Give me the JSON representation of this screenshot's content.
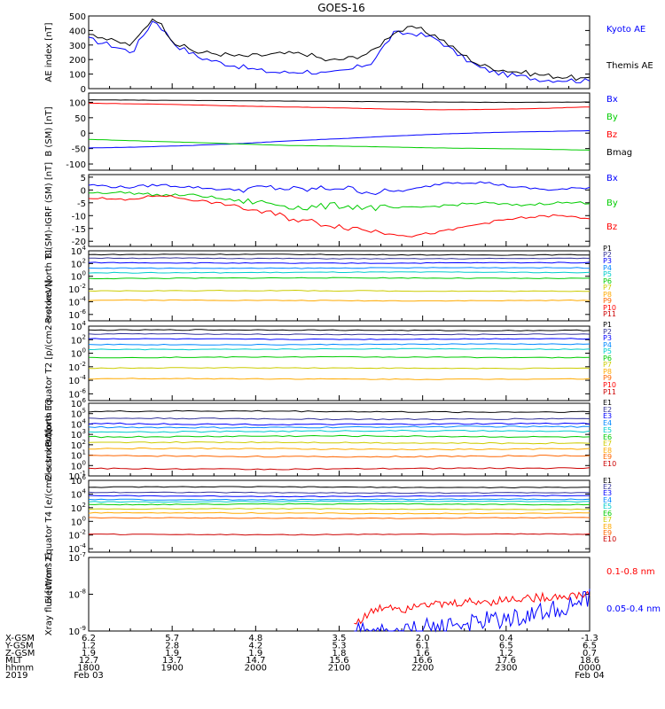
{
  "title": "GOES-16",
  "chart_data": [
    {
      "type": "line",
      "ylabel": "AE index [nT]",
      "ylim": [
        0,
        500
      ],
      "yticks": [
        "0",
        "100",
        "200",
        "300",
        "400",
        "500"
      ],
      "series": [
        {
          "name": "Kyoto AE",
          "color": "#0000ff",
          "values": [
            340,
            300,
            250,
            480,
            300,
            220,
            180,
            150,
            120,
            110,
            120,
            100,
            130,
            180,
            380,
            380,
            340,
            230,
            140,
            100,
            80,
            60,
            60,
            50
          ]
        },
        {
          "name": "Themis AE",
          "color": "#000000",
          "values": [
            390,
            330,
            300,
            500,
            310,
            250,
            240,
            220,
            230,
            240,
            240,
            190,
            210,
            250,
            390,
            420,
            360,
            250,
            160,
            130,
            110,
            90,
            80,
            60
          ]
        }
      ]
    },
    {
      "type": "line",
      "ylabel": "B (SM) [nT]",
      "ylim": [
        -120,
        130
      ],
      "yticks": [
        "100",
        "50",
        "0",
        "-50",
        "-100"
      ],
      "series": [
        {
          "name": "Bx",
          "color": "#0000ff",
          "values": [
            -48,
            -45,
            -40,
            -34,
            -25,
            -18,
            -10,
            -3,
            2,
            5,
            8
          ]
        },
        {
          "name": "By",
          "color": "#00cc00",
          "values": [
            -20,
            -25,
            -30,
            -35,
            -40,
            -42,
            -45,
            -48,
            -50,
            -52,
            -55
          ]
        },
        {
          "name": "Bz",
          "color": "#ff0000",
          "values": [
            97,
            95,
            92,
            88,
            85,
            82,
            78,
            76,
            77,
            80,
            85
          ]
        },
        {
          "name": "Bmag",
          "color": "#000000",
          "values": [
            108,
            107,
            106,
            105,
            104,
            103,
            102,
            101,
            100,
            100,
            101
          ]
        }
      ]
    },
    {
      "type": "line",
      "ylabel": "B (SM)-IGRF (SM) [nT]",
      "ylim": [
        -22,
        6
      ],
      "yticks": [
        "5",
        "0",
        "-5",
        "-10",
        "-15",
        "-20"
      ],
      "series": [
        {
          "name": "Bx",
          "color": "#0000ff",
          "values": [
            2,
            1,
            2,
            1,
            0,
            1,
            0,
            1,
            -1,
            0,
            3,
            3,
            1,
            0,
            1
          ]
        },
        {
          "name": "By",
          "color": "#00cc00",
          "values": [
            -1,
            -1,
            -2,
            -2,
            -4,
            -5,
            -7,
            -6,
            -7,
            -7,
            -6,
            -5,
            -6,
            -5,
            -5
          ]
        },
        {
          "name": "Bz",
          "color": "#ff0000",
          "values": [
            -3,
            -4,
            -2,
            -4,
            -6,
            -9,
            -12,
            -14,
            -16,
            -18,
            -16,
            -13,
            -11,
            -10,
            -11
          ]
        }
      ]
    },
    {
      "type": "line",
      "ylabel": "Protons North T1",
      "ylog": true,
      "ylim": [
        -7,
        4
      ],
      "yticks": [
        "10^4",
        "10^2",
        "10^0",
        "10^-2",
        "10^-4",
        "10^-6"
      ],
      "series": [
        {
          "name": "P1",
          "color": "#000000",
          "log": 3.4
        },
        {
          "name": "P2",
          "color": "#333399",
          "log": 2.8
        },
        {
          "name": "P3",
          "color": "#0000ff",
          "log": 2.1
        },
        {
          "name": "P4",
          "color": "#0088ff",
          "log": 1.3
        },
        {
          "name": "P5",
          "color": "#00cccc",
          "log": 0.6
        },
        {
          "name": "P6",
          "color": "#00cc00",
          "log": -0.3
        },
        {
          "name": "P7",
          "color": "#cccc00",
          "log": -2.3
        },
        {
          "name": "P8",
          "color": "#ffaa00",
          "log": -3.8
        },
        {
          "name": "P9",
          "color": "#ff6600"
        },
        {
          "name": "P10",
          "color": "#ff0000"
        },
        {
          "name": "P11",
          "color": "#cc0000"
        }
      ]
    },
    {
      "type": "line",
      "ylabel": "Protons Equator T2 [p/(cm2-s-sr-keV)]",
      "ylog": true,
      "ylim": [
        -7,
        4
      ],
      "yticks": [
        "10^4",
        "10^2",
        "10^0",
        "10^-2",
        "10^-4",
        "10^-6"
      ],
      "series": [
        {
          "name": "P1",
          "color": "#000000",
          "log": 3.4
        },
        {
          "name": "P2",
          "color": "#333399",
          "log": 2.8
        },
        {
          "name": "P3",
          "color": "#0000ff",
          "log": 2.1
        },
        {
          "name": "P4",
          "color": "#0088ff",
          "log": 1.3
        },
        {
          "name": "P5",
          "color": "#00cccc",
          "log": 0.6
        },
        {
          "name": "P6",
          "color": "#00cc00",
          "log": -0.6
        },
        {
          "name": "P7",
          "color": "#cccc00",
          "log": -2.2
        },
        {
          "name": "P8",
          "color": "#ffaa00",
          "log": -3.8
        },
        {
          "name": "P9",
          "color": "#ff6600"
        },
        {
          "name": "P10",
          "color": "#ff0000"
        },
        {
          "name": "P11",
          "color": "#cc0000"
        }
      ]
    },
    {
      "type": "line",
      "ylabel": "Electrons North T3",
      "ylog": true,
      "ylim": [
        -1,
        6
      ],
      "yticks": [
        "10^6",
        "10^5",
        "10^4",
        "10^3",
        "10^2",
        "10^1",
        "10^0",
        "10^-1"
      ],
      "series": [
        {
          "name": "E1",
          "color": "#000000",
          "log": 5.2
        },
        {
          "name": "E2",
          "color": "#333399",
          "log": 4.5
        },
        {
          "name": "E3",
          "color": "#0000ff",
          "log": 4.0
        },
        {
          "name": "E4",
          "color": "#0088ff",
          "log": 3.7
        },
        {
          "name": "E5",
          "color": "#00cccc",
          "log": 3.3
        },
        {
          "name": "E6",
          "color": "#00cc00",
          "log": 2.8
        },
        {
          "name": "E7",
          "color": "#cccc00",
          "log": 2.2
        },
        {
          "name": "E8",
          "color": "#ffaa00",
          "log": 1.6
        },
        {
          "name": "E9",
          "color": "#ff6600",
          "log": 0.9
        },
        {
          "name": "E10",
          "color": "#cc0000",
          "log": -0.3
        }
      ]
    },
    {
      "type": "line",
      "ylabel": "Electrons Equator T4 [e/(cm2-s-sr-keV)]",
      "ylog": true,
      "ylim": [
        -4.5,
        6
      ],
      "yticks": [
        "10^6",
        "10^4",
        "10^2",
        "10^0",
        "10^-2",
        "10^-4"
      ],
      "series": [
        {
          "name": "E1",
          "color": "#000000",
          "log": 5.0
        },
        {
          "name": "E2",
          "color": "#333399",
          "log": 4.2
        },
        {
          "name": "E3",
          "color": "#0000ff",
          "log": 3.7
        },
        {
          "name": "E4",
          "color": "#0088ff",
          "log": 3.2
        },
        {
          "name": "E5",
          "color": "#00cccc",
          "log": 2.9
        },
        {
          "name": "E6",
          "color": "#00cc00",
          "log": 2.5
        },
        {
          "name": "E7",
          "color": "#cccc00",
          "log": 1.8
        },
        {
          "name": "E8",
          "color": "#ffaa00",
          "log": 1.2
        },
        {
          "name": "E9",
          "color": "#ff6600",
          "log": 0.5
        },
        {
          "name": "E10",
          "color": "#cc0000",
          "log": -1.9
        }
      ]
    },
    {
      "type": "line",
      "ylabel": "Xray flux [W/m^2]",
      "ylog": true,
      "ylim": [
        -9,
        -7
      ],
      "yticks": [
        "10^-7",
        "10^-8",
        "10^-9"
      ],
      "series": [
        {
          "name": "0.1-0.8 nm",
          "color": "#ff0000",
          "values": [
            -8.8,
            -8.5,
            -8.3,
            -8.4,
            -8.2,
            -8.3,
            -8.25,
            -8.2,
            -8.2,
            -8.15,
            -8.1,
            -8.1,
            -8.05,
            -8.05,
            -8.0
          ]
        },
        {
          "name": "0.05-0.4 nm",
          "color": "#0000ff",
          "values": [
            -9.0,
            -9.0,
            -9.0,
            -9.0,
            -8.9,
            -8.9,
            -8.8,
            -8.8,
            -8.7,
            -8.7,
            -8.6,
            -8.5,
            -8.4,
            -8.3,
            -8.1
          ]
        }
      ]
    }
  ],
  "x_axis": {
    "rows": [
      {
        "label": "X-GSM",
        "values": [
          "6.2",
          "5.7",
          "4.8",
          "3.5",
          "2.0",
          "0.4",
          "-1.3"
        ]
      },
      {
        "label": "Y-GSM",
        "values": [
          "1.2",
          "2.8",
          "4.2",
          "5.3",
          "6.1",
          "6.5",
          "6.5"
        ]
      },
      {
        "label": "Z-GSM",
        "values": [
          "1.9",
          "1.9",
          "1.9",
          "1.8",
          "1.6",
          "1.2",
          "0.7"
        ]
      },
      {
        "label": "MLT",
        "values": [
          "12.7",
          "13.7",
          "14.7",
          "15.6",
          "16.6",
          "17.6",
          "18.6"
        ]
      },
      {
        "label": "hhmm",
        "values": [
          "1800",
          "1900",
          "2000",
          "2100",
          "2200",
          "2300",
          "0000"
        ]
      }
    ],
    "year": "2019",
    "date_start": "Feb 03",
    "date_end": "Feb 04"
  }
}
